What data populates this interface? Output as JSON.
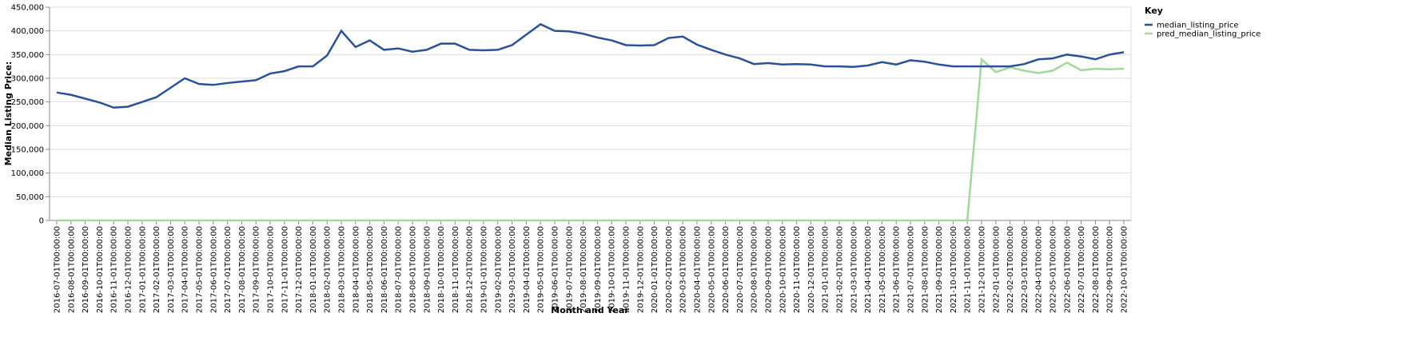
{
  "chart_data": {
    "type": "line",
    "x_label": "Month and Year",
    "y_label": "Median Listing Price:",
    "legend_title": "Key",
    "categories": [
      "2016-07-01T00:00:00",
      "2016-08-01T00:00:00",
      "2016-09-01T00:00:00",
      "2016-10-01T00:00:00",
      "2016-11-01T00:00:00",
      "2016-12-01T00:00:00",
      "2017-01-01T00:00:00",
      "2017-02-01T00:00:00",
      "2017-03-01T00:00:00",
      "2017-04-01T00:00:00",
      "2017-05-01T00:00:00",
      "2017-06-01T00:00:00",
      "2017-07-01T00:00:00",
      "2017-08-01T00:00:00",
      "2017-09-01T00:00:00",
      "2017-10-01T00:00:00",
      "2017-11-01T00:00:00",
      "2017-12-01T00:00:00",
      "2018-01-01T00:00:00",
      "2018-02-01T00:00:00",
      "2018-03-01T00:00:00",
      "2018-04-01T00:00:00",
      "2018-05-01T00:00:00",
      "2018-06-01T00:00:00",
      "2018-07-01T00:00:00",
      "2018-08-01T00:00:00",
      "2018-09-01T00:00:00",
      "2018-10-01T00:00:00",
      "2018-11-01T00:00:00",
      "2018-12-01T00:00:00",
      "2019-01-01T00:00:00",
      "2019-02-01T00:00:00",
      "2019-03-01T00:00:00",
      "2019-04-01T00:00:00",
      "2019-05-01T00:00:00",
      "2019-06-01T00:00:00",
      "2019-07-01T00:00:00",
      "2019-08-01T00:00:00",
      "2019-09-01T00:00:00",
      "2019-10-01T00:00:00",
      "2019-11-01T00:00:00",
      "2019-12-01T00:00:00",
      "2020-01-01T00:00:00",
      "2020-02-01T00:00:00",
      "2020-03-01T00:00:00",
      "2020-04-01T00:00:00",
      "2020-05-01T00:00:00",
      "2020-06-01T00:00:00",
      "2020-07-01T00:00:00",
      "2020-08-01T00:00:00",
      "2020-09-01T00:00:00",
      "2020-10-01T00:00:00",
      "2020-11-01T00:00:00",
      "2020-12-01T00:00:00",
      "2021-01-01T00:00:00",
      "2021-02-01T00:00:00",
      "2021-03-01T00:00:00",
      "2021-04-01T00:00:00",
      "2021-05-01T00:00:00",
      "2021-06-01T00:00:00",
      "2021-07-01T00:00:00",
      "2021-08-01T00:00:00",
      "2021-09-01T00:00:00",
      "2021-10-01T00:00:00",
      "2021-11-01T00:00:00",
      "2021-12-01T00:00:00",
      "2022-01-01T00:00:00",
      "2022-02-01T00:00:00",
      "2022-03-01T00:00:00",
      "2022-04-01T00:00:00",
      "2022-05-01T00:00:00",
      "2022-06-01T00:00:00",
      "2022-07-01T00:00:00",
      "2022-08-01T00:00:00",
      "2022-09-01T00:00:00",
      "2022-10-01T00:00:00"
    ],
    "series": [
      {
        "name": "median_listing_price",
        "color": "#2a5298",
        "values": [
          270000,
          265000,
          257000,
          249000,
          238000,
          240000,
          250000,
          260000,
          280000,
          300000,
          288000,
          286000,
          290000,
          293000,
          296000,
          310000,
          315000,
          325000,
          325000,
          348000,
          400000,
          366000,
          380000,
          360000,
          363000,
          356000,
          360000,
          373000,
          373000,
          360000,
          359000,
          360000,
          370000,
          392000,
          414000,
          400000,
          399000,
          394000,
          386000,
          380000,
          370000,
          369000,
          370000,
          385000,
          388000,
          371000,
          360000,
          350000,
          342000,
          330000,
          332000,
          329000,
          330000,
          329000,
          325000,
          325000,
          324000,
          327000,
          334000,
          329000,
          338000,
          335000,
          329000,
          325000,
          325000,
          325000,
          325000,
          325000,
          330000,
          340000,
          342000,
          350000,
          346000,
          340000,
          350000,
          355000
        ]
      },
      {
        "name": "pred_median_listing_price",
        "color": "#a1d99b",
        "values": [
          0,
          0,
          0,
          0,
          0,
          0,
          0,
          0,
          0,
          0,
          0,
          0,
          0,
          0,
          0,
          0,
          0,
          0,
          0,
          0,
          0,
          0,
          0,
          0,
          0,
          0,
          0,
          0,
          0,
          0,
          0,
          0,
          0,
          0,
          0,
          0,
          0,
          0,
          0,
          0,
          0,
          0,
          0,
          0,
          0,
          0,
          0,
          0,
          0,
          0,
          0,
          0,
          0,
          0,
          0,
          0,
          0,
          0,
          0,
          0,
          0,
          0,
          0,
          0,
          0,
          340000,
          313000,
          323000,
          316000,
          311000,
          316000,
          333000,
          317000,
          320000,
          319000,
          320000
        ]
      }
    ],
    "ylim": [
      0,
      450000
    ],
    "yticks": [
      0,
      {
        "value": 50000,
        "label": "50,000"
      },
      {
        "value": 100000,
        "label": "100,000"
      },
      {
        "value": 150000,
        "label": "150,000"
      },
      {
        "value": 200000,
        "label": "200,000"
      },
      {
        "value": 250000,
        "label": "250,000"
      },
      {
        "value": 300000,
        "label": "300,000"
      },
      {
        "value": 350000,
        "label": "350,000"
      },
      {
        "value": 400000,
        "label": "400,000"
      },
      {
        "value": 450000,
        "label": "450,000"
      }
    ],
    "grid": true,
    "legend_position": "right"
  }
}
